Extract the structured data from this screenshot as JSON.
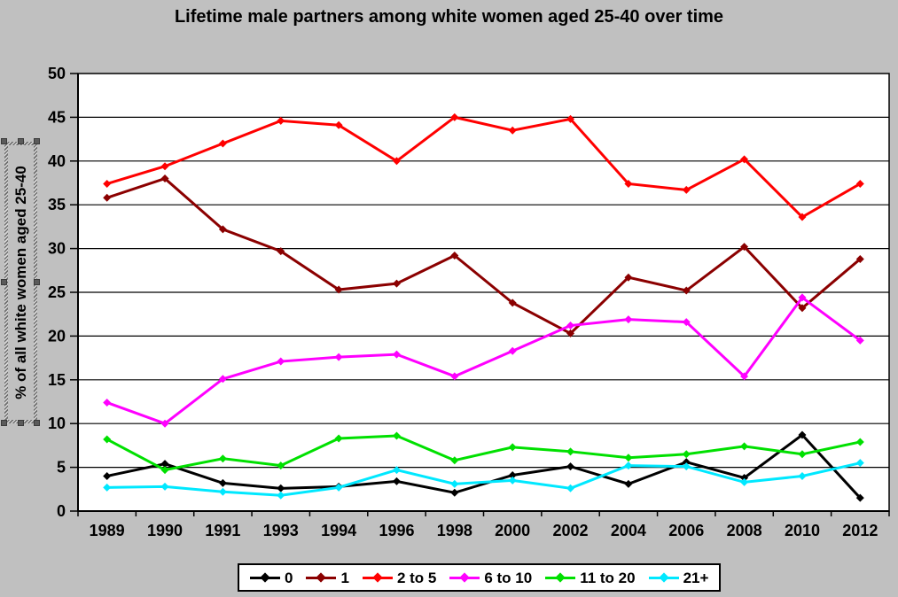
{
  "title": "Lifetime male partners among white women aged 25-40 over time",
  "y_axis": {
    "title": "% of all white women aged 25-40",
    "ticks": [
      0,
      5,
      10,
      15,
      20,
      25,
      30,
      35,
      40,
      45,
      50
    ]
  },
  "x_axis": {
    "categories": [
      "1989",
      "1990",
      "1991",
      "1993",
      "1994",
      "1996",
      "1998",
      "2000",
      "2002",
      "2004",
      "2006",
      "2008",
      "2010",
      "2012"
    ]
  },
  "colors": {
    "background": "#c0c0c0",
    "plot_background": "#ffffff",
    "gridline": "#000000",
    "axis": "#000000",
    "legend_background": "#ffffff"
  },
  "chart_data": {
    "type": "line",
    "title": "Lifetime male partners among white women aged 25-40 over time",
    "xlabel": "",
    "ylabel": "% of all white women aged 25-40",
    "ylim": [
      0,
      50
    ],
    "ytick_step": 5,
    "grid": "horizontal",
    "legend_position": "bottom",
    "marker": "diamond",
    "categories": [
      "1989",
      "1990",
      "1991",
      "1993",
      "1994",
      "1996",
      "1998",
      "2000",
      "2002",
      "2004",
      "2006",
      "2008",
      "2010",
      "2012"
    ],
    "series": [
      {
        "name": "0",
        "color": "#000000",
        "values": [
          4.0,
          5.4,
          3.2,
          2.6,
          2.8,
          3.4,
          2.1,
          4.1,
          5.1,
          3.1,
          5.6,
          3.8,
          8.7,
          1.5
        ]
      },
      {
        "name": "1",
        "color": "#8b0000",
        "values": [
          35.8,
          38.0,
          32.2,
          29.7,
          25.3,
          26.0,
          29.2,
          23.8,
          20.3,
          26.7,
          25.2,
          30.2,
          23.2,
          28.8
        ]
      },
      {
        "name": "2 to 5",
        "color": "#ff0000",
        "values": [
          37.4,
          39.4,
          42.0,
          44.6,
          44.1,
          40.0,
          45.0,
          43.5,
          44.8,
          37.4,
          36.7,
          40.2,
          33.6,
          37.4
        ]
      },
      {
        "name": "6 to 10",
        "color": "#ff00ff",
        "values": [
          12.4,
          10.0,
          15.1,
          17.1,
          17.6,
          17.9,
          15.4,
          18.3,
          21.2,
          21.9,
          21.6,
          15.4,
          24.4,
          19.5
        ]
      },
      {
        "name": "11 to 20",
        "color": "#00e000",
        "values": [
          8.2,
          4.7,
          6.0,
          5.2,
          8.3,
          8.6,
          5.8,
          7.3,
          6.8,
          6.1,
          6.5,
          7.4,
          6.5,
          7.9
        ]
      },
      {
        "name": "21+",
        "color": "#00e8ff",
        "values": [
          2.7,
          2.8,
          2.2,
          1.8,
          2.7,
          4.7,
          3.1,
          3.5,
          2.6,
          5.2,
          5.1,
          3.3,
          4.0,
          5.5
        ]
      }
    ]
  }
}
